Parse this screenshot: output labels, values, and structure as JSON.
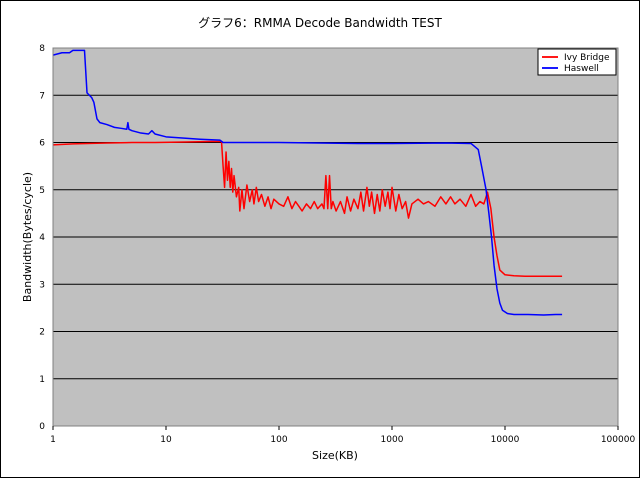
{
  "chart_data": {
    "type": "line",
    "title": "グラフ6：RMMA Decode Bandwidth TEST",
    "xlabel": "Size(KB)",
    "ylabel": "Bandwidth(Bytes/cycle)",
    "x_scale": "log",
    "xlim": [
      1,
      100000
    ],
    "ylim": [
      0,
      8
    ],
    "x_ticks": [
      "1",
      "10",
      "100",
      "1000",
      "10000",
      "100000"
    ],
    "y_ticks": [
      "0",
      "1",
      "2",
      "3",
      "4",
      "5",
      "6",
      "7",
      "8"
    ],
    "grid": "horizontal",
    "legend_position": "top-right",
    "plot_background": "#c0c0c0",
    "series": [
      {
        "name": "Ivy Bridge",
        "color": "#ff0000",
        "points": [
          [
            1,
            5.95
          ],
          [
            1.5,
            5.97
          ],
          [
            2,
            5.98
          ],
          [
            3,
            5.99
          ],
          [
            5,
            6.0
          ],
          [
            8,
            6.0
          ],
          [
            15,
            6.01
          ],
          [
            25,
            6.02
          ],
          [
            31,
            6.02
          ],
          [
            32,
            5.5
          ],
          [
            33,
            5.05
          ],
          [
            34,
            5.8
          ],
          [
            35,
            5.2
          ],
          [
            36,
            5.6
          ],
          [
            37,
            5.05
          ],
          [
            38,
            5.45
          ],
          [
            39,
            4.95
          ],
          [
            40,
            5.3
          ],
          [
            42,
            4.85
          ],
          [
            44,
            5.05
          ],
          [
            45,
            4.55
          ],
          [
            47,
            5.0
          ],
          [
            49,
            4.6
          ],
          [
            52,
            5.1
          ],
          [
            55,
            4.75
          ],
          [
            58,
            5.0
          ],
          [
            60,
            4.7
          ],
          [
            63,
            5.05
          ],
          [
            66,
            4.75
          ],
          [
            70,
            4.9
          ],
          [
            75,
            4.65
          ],
          [
            80,
            4.85
          ],
          [
            85,
            4.6
          ],
          [
            90,
            4.8
          ],
          [
            100,
            4.7
          ],
          [
            110,
            4.65
          ],
          [
            120,
            4.85
          ],
          [
            130,
            4.6
          ],
          [
            140,
            4.75
          ],
          [
            150,
            4.65
          ],
          [
            160,
            4.55
          ],
          [
            175,
            4.7
          ],
          [
            190,
            4.6
          ],
          [
            205,
            4.75
          ],
          [
            220,
            4.6
          ],
          [
            240,
            4.7
          ],
          [
            250,
            4.6
          ],
          [
            260,
            5.3
          ],
          [
            270,
            4.6
          ],
          [
            280,
            5.3
          ],
          [
            290,
            4.6
          ],
          [
            300,
            4.75
          ],
          [
            320,
            4.55
          ],
          [
            350,
            4.75
          ],
          [
            380,
            4.5
          ],
          [
            400,
            4.85
          ],
          [
            430,
            4.55
          ],
          [
            460,
            4.8
          ],
          [
            500,
            4.6
          ],
          [
            530,
            4.95
          ],
          [
            560,
            4.55
          ],
          [
            600,
            5.05
          ],
          [
            630,
            4.65
          ],
          [
            660,
            4.95
          ],
          [
            700,
            4.5
          ],
          [
            740,
            4.9
          ],
          [
            780,
            4.55
          ],
          [
            820,
            5.0
          ],
          [
            870,
            4.65
          ],
          [
            920,
            4.95
          ],
          [
            960,
            4.6
          ],
          [
            1000,
            5.05
          ],
          [
            1080,
            4.55
          ],
          [
            1150,
            4.9
          ],
          [
            1230,
            4.6
          ],
          [
            1320,
            4.75
          ],
          [
            1400,
            4.4
          ],
          [
            1500,
            4.7
          ],
          [
            1700,
            4.8
          ],
          [
            1900,
            4.7
          ],
          [
            2100,
            4.75
          ],
          [
            2400,
            4.65
          ],
          [
            2700,
            4.85
          ],
          [
            3000,
            4.7
          ],
          [
            3300,
            4.85
          ],
          [
            3600,
            4.7
          ],
          [
            4000,
            4.8
          ],
          [
            4500,
            4.65
          ],
          [
            5000,
            4.9
          ],
          [
            5500,
            4.65
          ],
          [
            6000,
            4.75
          ],
          [
            6500,
            4.7
          ],
          [
            7000,
            4.95
          ],
          [
            7500,
            4.6
          ],
          [
            8000,
            4.0
          ],
          [
            8500,
            3.6
          ],
          [
            9000,
            3.3
          ],
          [
            10000,
            3.2
          ],
          [
            12000,
            3.18
          ],
          [
            15000,
            3.17
          ],
          [
            20000,
            3.17
          ],
          [
            25000,
            3.17
          ],
          [
            32000,
            3.17
          ]
        ]
      },
      {
        "name": "Haswell",
        "color": "#0000ff",
        "points": [
          [
            1,
            7.85
          ],
          [
            1.2,
            7.9
          ],
          [
            1.4,
            7.9
          ],
          [
            1.5,
            7.95
          ],
          [
            1.9,
            7.95
          ],
          [
            2,
            7.05
          ],
          [
            2.1,
            7.0
          ],
          [
            2.2,
            6.95
          ],
          [
            2.3,
            6.85
          ],
          [
            2.45,
            6.5
          ],
          [
            2.6,
            6.42
          ],
          [
            3,
            6.38
          ],
          [
            3.5,
            6.32
          ],
          [
            4,
            6.3
          ],
          [
            4.5,
            6.28
          ],
          [
            4.6,
            6.42
          ],
          [
            4.7,
            6.28
          ],
          [
            5,
            6.25
          ],
          [
            6,
            6.2
          ],
          [
            7,
            6.18
          ],
          [
            7.5,
            6.25
          ],
          [
            8,
            6.18
          ],
          [
            10,
            6.12
          ],
          [
            15,
            6.09
          ],
          [
            20,
            6.07
          ],
          [
            30,
            6.05
          ],
          [
            32,
            6.0
          ],
          [
            100,
            6.0
          ],
          [
            500,
            5.98
          ],
          [
            1000,
            5.98
          ],
          [
            3000,
            5.99
          ],
          [
            5000,
            5.98
          ],
          [
            5800,
            5.85
          ],
          [
            6200,
            5.5
          ],
          [
            6800,
            5.0
          ],
          [
            7200,
            4.5
          ],
          [
            7600,
            4.0
          ],
          [
            8000,
            3.4
          ],
          [
            8500,
            2.9
          ],
          [
            9000,
            2.6
          ],
          [
            9500,
            2.45
          ],
          [
            10500,
            2.38
          ],
          [
            12000,
            2.36
          ],
          [
            16000,
            2.36
          ],
          [
            22000,
            2.35
          ],
          [
            28000,
            2.36
          ],
          [
            32000,
            2.36
          ]
        ]
      }
    ]
  }
}
